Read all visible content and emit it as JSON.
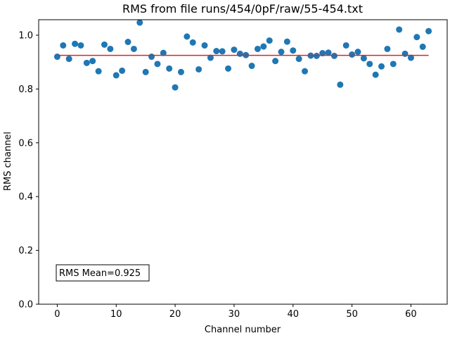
{
  "chart_data": {
    "type": "scatter",
    "title": "RMS from file runs/454/0pF/raw/55-454.txt",
    "xlabel": "Channel number",
    "ylabel": "RMS channel",
    "xlim": [
      -3.15,
      66.15
    ],
    "ylim": [
      0,
      1.0575
    ],
    "xticks": [
      0,
      10,
      20,
      30,
      40,
      50,
      60
    ],
    "xtick_labels": [
      "0",
      "10",
      "20",
      "30",
      "40",
      "50",
      "60"
    ],
    "yticks": [
      0.0,
      0.2,
      0.4,
      0.6,
      0.8,
      1.0
    ],
    "ytick_labels": [
      "0.0",
      "0.2",
      "0.4",
      "0.6",
      "0.8",
      "1.0"
    ],
    "grid": false,
    "series": [
      {
        "type": "scatter",
        "color": "#1f77b4",
        "x": [
          0,
          1,
          2,
          3,
          4,
          5,
          6,
          7,
          8,
          9,
          10,
          11,
          12,
          13,
          14,
          15,
          16,
          17,
          18,
          19,
          20,
          21,
          22,
          23,
          24,
          25,
          26,
          27,
          28,
          29,
          30,
          31,
          32,
          33,
          34,
          35,
          36,
          37,
          38,
          39,
          40,
          41,
          42,
          43,
          44,
          45,
          46,
          47,
          48,
          49,
          50,
          51,
          52,
          53,
          54,
          55,
          56,
          57,
          58,
          59,
          60,
          61,
          62,
          63
        ],
        "y": [
          0.92,
          0.962,
          0.912,
          0.968,
          0.962,
          0.897,
          0.904,
          0.866,
          0.965,
          0.949,
          0.851,
          0.868,
          0.975,
          0.949,
          1.047,
          0.863,
          0.92,
          0.893,
          0.934,
          0.876,
          0.806,
          0.863,
          0.995,
          0.973,
          0.873,
          0.962,
          0.916,
          0.941,
          0.94,
          0.876,
          0.946,
          0.931,
          0.926,
          0.886,
          0.949,
          0.958,
          0.98,
          0.904,
          0.938,
          0.976,
          0.943,
          0.912,
          0.866,
          0.924,
          0.923,
          0.933,
          0.935,
          0.923,
          0.816,
          0.962,
          0.928,
          0.938,
          0.914,
          0.893,
          0.853,
          0.884,
          0.949,
          0.893,
          1.021,
          0.931,
          0.916,
          0.993,
          0.957,
          1.015
        ]
      },
      {
        "type": "line",
        "color": "#d62728",
        "x": [
          0,
          63
        ],
        "y": [
          0.925,
          0.925
        ]
      }
    ],
    "annotations": [
      {
        "text": "RMS Mean=0.925",
        "position": "lower-left"
      }
    ]
  }
}
